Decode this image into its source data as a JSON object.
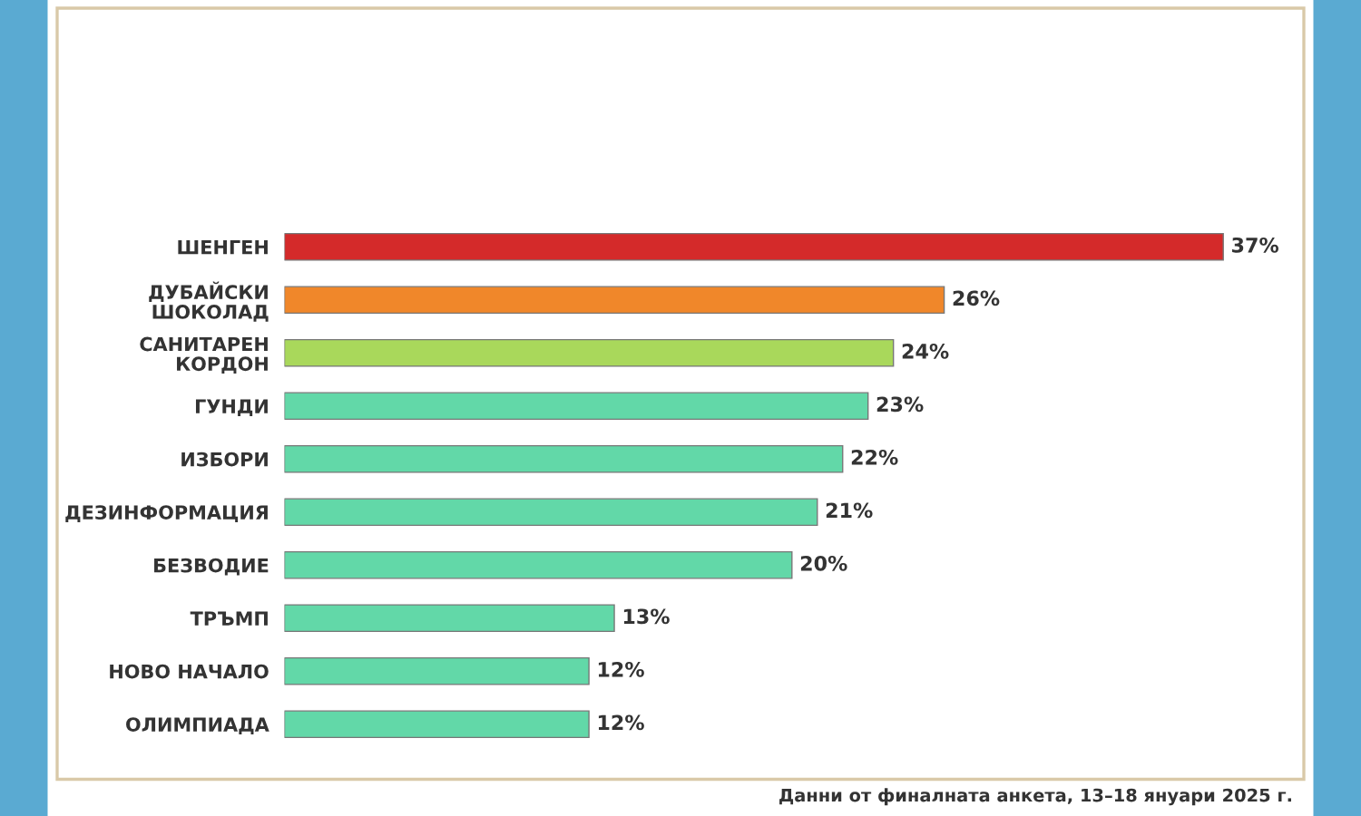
{
  "chart_data": {
    "type": "bar",
    "orientation": "horizontal",
    "categories": [
      "ШЕНГЕН",
      "ДУБАЙСКИ\nШОКОЛАД",
      "САНИТАРЕН\nКОРДОН",
      "ГУНДИ",
      "ИЗБОРИ",
      "ДЕЗИНФОРМАЦИЯ",
      "БЕЗВОДИЕ",
      "ТРЪМП",
      "НОВО НАЧАЛО",
      "ОЛИМПИАДА"
    ],
    "values": [
      37,
      26,
      24,
      23,
      22,
      21,
      20,
      13,
      12,
      12
    ],
    "colors": [
      "#d42a2a",
      "#f0872a",
      "#a9d85b",
      "#62d8a8",
      "#62d8a8",
      "#62d8a8",
      "#62d8a8",
      "#62d8a8",
      "#62d8a8",
      "#62d8a8"
    ],
    "value_labels": [
      "37%",
      "26%",
      "24%",
      "23%",
      "22%",
      "21%",
      "20%",
      "13%",
      "12%",
      "12%"
    ],
    "grid": false,
    "legend": false,
    "annotations": [
      "Данни от финалната анкета, 13–18 януари 2025 г."
    ]
  }
}
